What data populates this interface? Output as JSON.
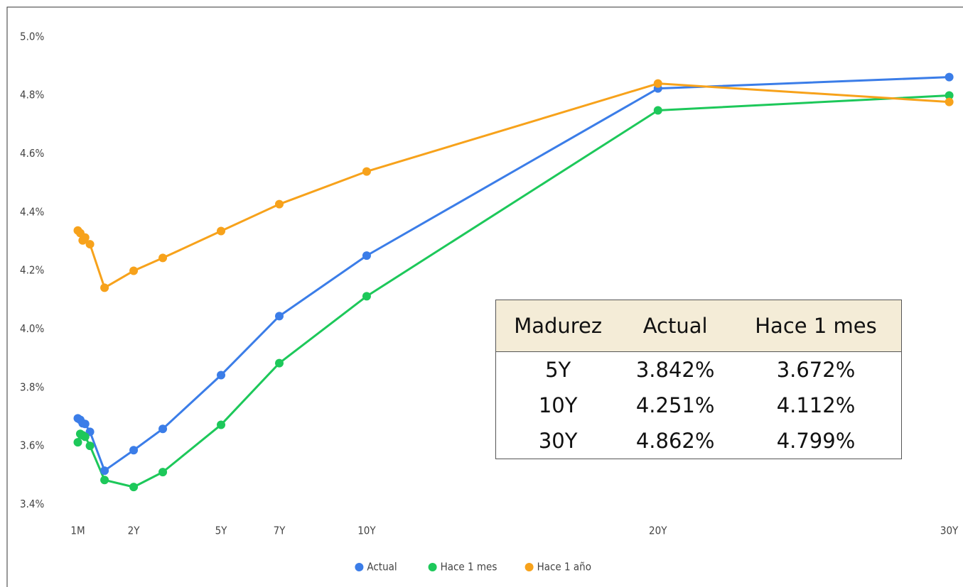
{
  "chart_data": {
    "type": "line",
    "x": [
      0.083,
      0.167,
      0.25,
      0.333,
      0.5,
      1,
      2,
      3,
      5,
      7,
      10,
      20,
      30
    ],
    "series": [
      {
        "name": "Actual",
        "color": "#3b7de8",
        "values": [
          3.694,
          3.689,
          3.677,
          3.675,
          3.648,
          3.515,
          3.585,
          3.658,
          3.842,
          4.044,
          4.251,
          4.823,
          4.862
        ]
      },
      {
        "name": "Hace 1 mes",
        "color": "#1dc85a",
        "values": [
          3.612,
          3.641,
          3.636,
          3.631,
          3.6,
          3.483,
          3.459,
          3.51,
          3.672,
          3.883,
          4.112,
          4.748,
          4.799
        ]
      },
      {
        "name": "Hace 1 año",
        "color": "#f7a21b",
        "values": [
          4.337,
          4.328,
          4.303,
          4.313,
          4.29,
          4.141,
          4.199,
          4.243,
          4.335,
          4.427,
          4.539,
          4.84,
          4.777
        ]
      }
    ],
    "xlim": [
      -0.1,
      30.4
    ],
    "xticks": [
      {
        "value": 0.083,
        "label": "1M"
      },
      {
        "value": 2,
        "label": "2Y"
      },
      {
        "value": 5,
        "label": "5Y"
      },
      {
        "value": 7,
        "label": "7Y"
      },
      {
        "value": 10,
        "label": "10Y"
      },
      {
        "value": 20,
        "label": "20Y"
      },
      {
        "value": 30,
        "label": "30Y"
      }
    ],
    "ylim": [
      3.35,
      5.07
    ],
    "yticks": [
      {
        "value": 3.4,
        "label": "3.4%"
      },
      {
        "value": 3.6,
        "label": "3.6%"
      },
      {
        "value": 3.8,
        "label": "3.8%"
      },
      {
        "value": 4.0,
        "label": "4.0%"
      },
      {
        "value": 4.2,
        "label": "4.2%"
      },
      {
        "value": 4.4,
        "label": "4.4%"
      },
      {
        "value": 4.6,
        "label": "4.6%"
      },
      {
        "value": 4.8,
        "label": "4.8%"
      },
      {
        "value": 5.0,
        "label": "5.0%"
      }
    ],
    "legend": "bottom"
  },
  "table": {
    "headers": [
      "Madurez",
      "Actual",
      "Hace 1 mes"
    ],
    "rows": [
      [
        "5Y",
        "3.842%",
        "3.672%"
      ],
      [
        "10Y",
        "4.251%",
        "4.112%"
      ],
      [
        "30Y",
        "4.862%",
        "4.799%"
      ]
    ]
  }
}
